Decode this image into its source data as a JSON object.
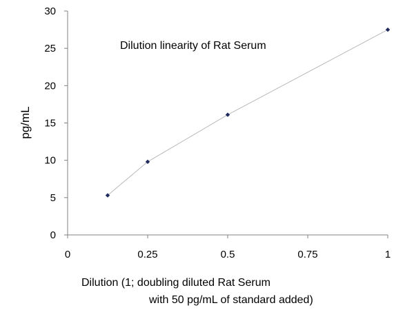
{
  "chart_data": {
    "type": "line",
    "title": "Dilution linearity of Rat Serum",
    "xlabel_line1": "Dilution (1; doubling diluted Rat Serum",
    "xlabel_line2": "with 50 pg/mL of standard added)",
    "ylabel": "pg/mL",
    "xlim": [
      0,
      1
    ],
    "ylim": [
      0,
      30
    ],
    "x_ticks": [
      "0",
      "0.25",
      "0.5",
      "0.75",
      "1"
    ],
    "y_ticks": [
      "0",
      "5",
      "10",
      "15",
      "20",
      "25",
      "30"
    ],
    "grid": false,
    "series": [
      {
        "x": [
          0.125,
          0.25,
          0.5,
          1
        ],
        "y": [
          5.3,
          9.8,
          16.1,
          27.5
        ]
      }
    ],
    "colors": {
      "marker": "#1f2a5e",
      "line": "#b8b8b8",
      "axis": "#808080"
    }
  }
}
